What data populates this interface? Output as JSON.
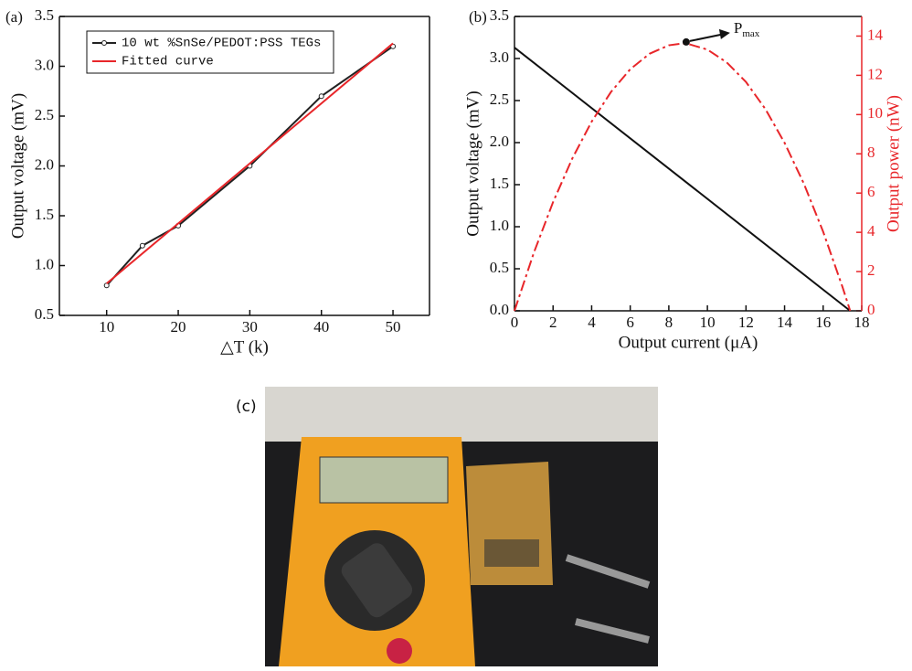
{
  "chart_data": [
    {
      "type": "line",
      "panel": "(a)",
      "x_label": "△T (k)",
      "y_label": "Output voltage (mV)",
      "xlim": [
        3.4,
        55.1
      ],
      "xticks": [
        10,
        20,
        30,
        40,
        50
      ],
      "ylim": [
        0.5,
        3.5
      ],
      "yticks": [
        0.5,
        {
          "value": 1.0,
          "label": "1.0"
        },
        1.5,
        {
          "value": 2.0,
          "label": "2.0"
        },
        2.5,
        {
          "value": 3.0,
          "label": "3.0"
        },
        3.5
      ],
      "legend": "top-left",
      "series": [
        {
          "name": "10 wt %SnSe/PEDOT:PSS TEGs",
          "color": "#222222",
          "marker": "circle",
          "x": [
            10,
            15,
            20,
            30,
            40,
            50
          ],
          "values": [
            0.8,
            1.2,
            1.4,
            2.0,
            2.7,
            3.2
          ]
        },
        {
          "name": "Fitted curve",
          "color": "#e8262a",
          "x": [
            10,
            50
          ],
          "values": [
            0.82,
            3.23
          ]
        }
      ]
    },
    {
      "type": "line",
      "panel": "(b)",
      "x_label": "Output current (μA)",
      "y_label": "Output voltage (mV)",
      "y2_label": "Output power (nW)",
      "xlim": [
        0,
        18
      ],
      "xticks": [
        0,
        2,
        4,
        6,
        8,
        10,
        12,
        14,
        16,
        18
      ],
      "ylim": [
        0,
        3.5
      ],
      "yticks": [
        {
          "value": 0,
          "label": "0.0"
        },
        0.5,
        {
          "value": 1,
          "label": "1.0"
        },
        1.5,
        {
          "value": 2,
          "label": "2.0"
        },
        2.5,
        {
          "value": 3,
          "label": "3.0"
        },
        3.5
      ],
      "y2lim": [
        0,
        15
      ],
      "y2ticks": [
        0,
        2,
        4,
        6,
        8,
        10,
        12,
        14
      ],
      "series": [
        {
          "color": "#111111",
          "x": [
            0,
            17.4
          ],
          "values": [
            3.13,
            0
          ]
        },
        {
          "color": "#e8262a",
          "axis": "y2",
          "dash": "dashdot",
          "x": [
            0,
            1,
            2,
            3,
            4,
            5,
            6,
            7,
            8,
            8.7,
            9,
            10,
            11,
            12,
            13,
            14,
            15,
            16,
            17,
            17.4
          ],
          "values": [
            0,
            2.95,
            5.54,
            7.77,
            9.64,
            11.15,
            12.31,
            13.1,
            13.53,
            13.62,
            13.6,
            13.31,
            12.66,
            11.66,
            10.29,
            8.56,
            6.48,
            4.03,
            1.22,
            0
          ]
        }
      ],
      "annotations": [
        {
          "text": "P",
          "subscript": "max",
          "x": 8.9,
          "y": 13.7,
          "axis": "y2"
        }
      ]
    }
  ],
  "photo": {
    "panel": "(c)"
  }
}
